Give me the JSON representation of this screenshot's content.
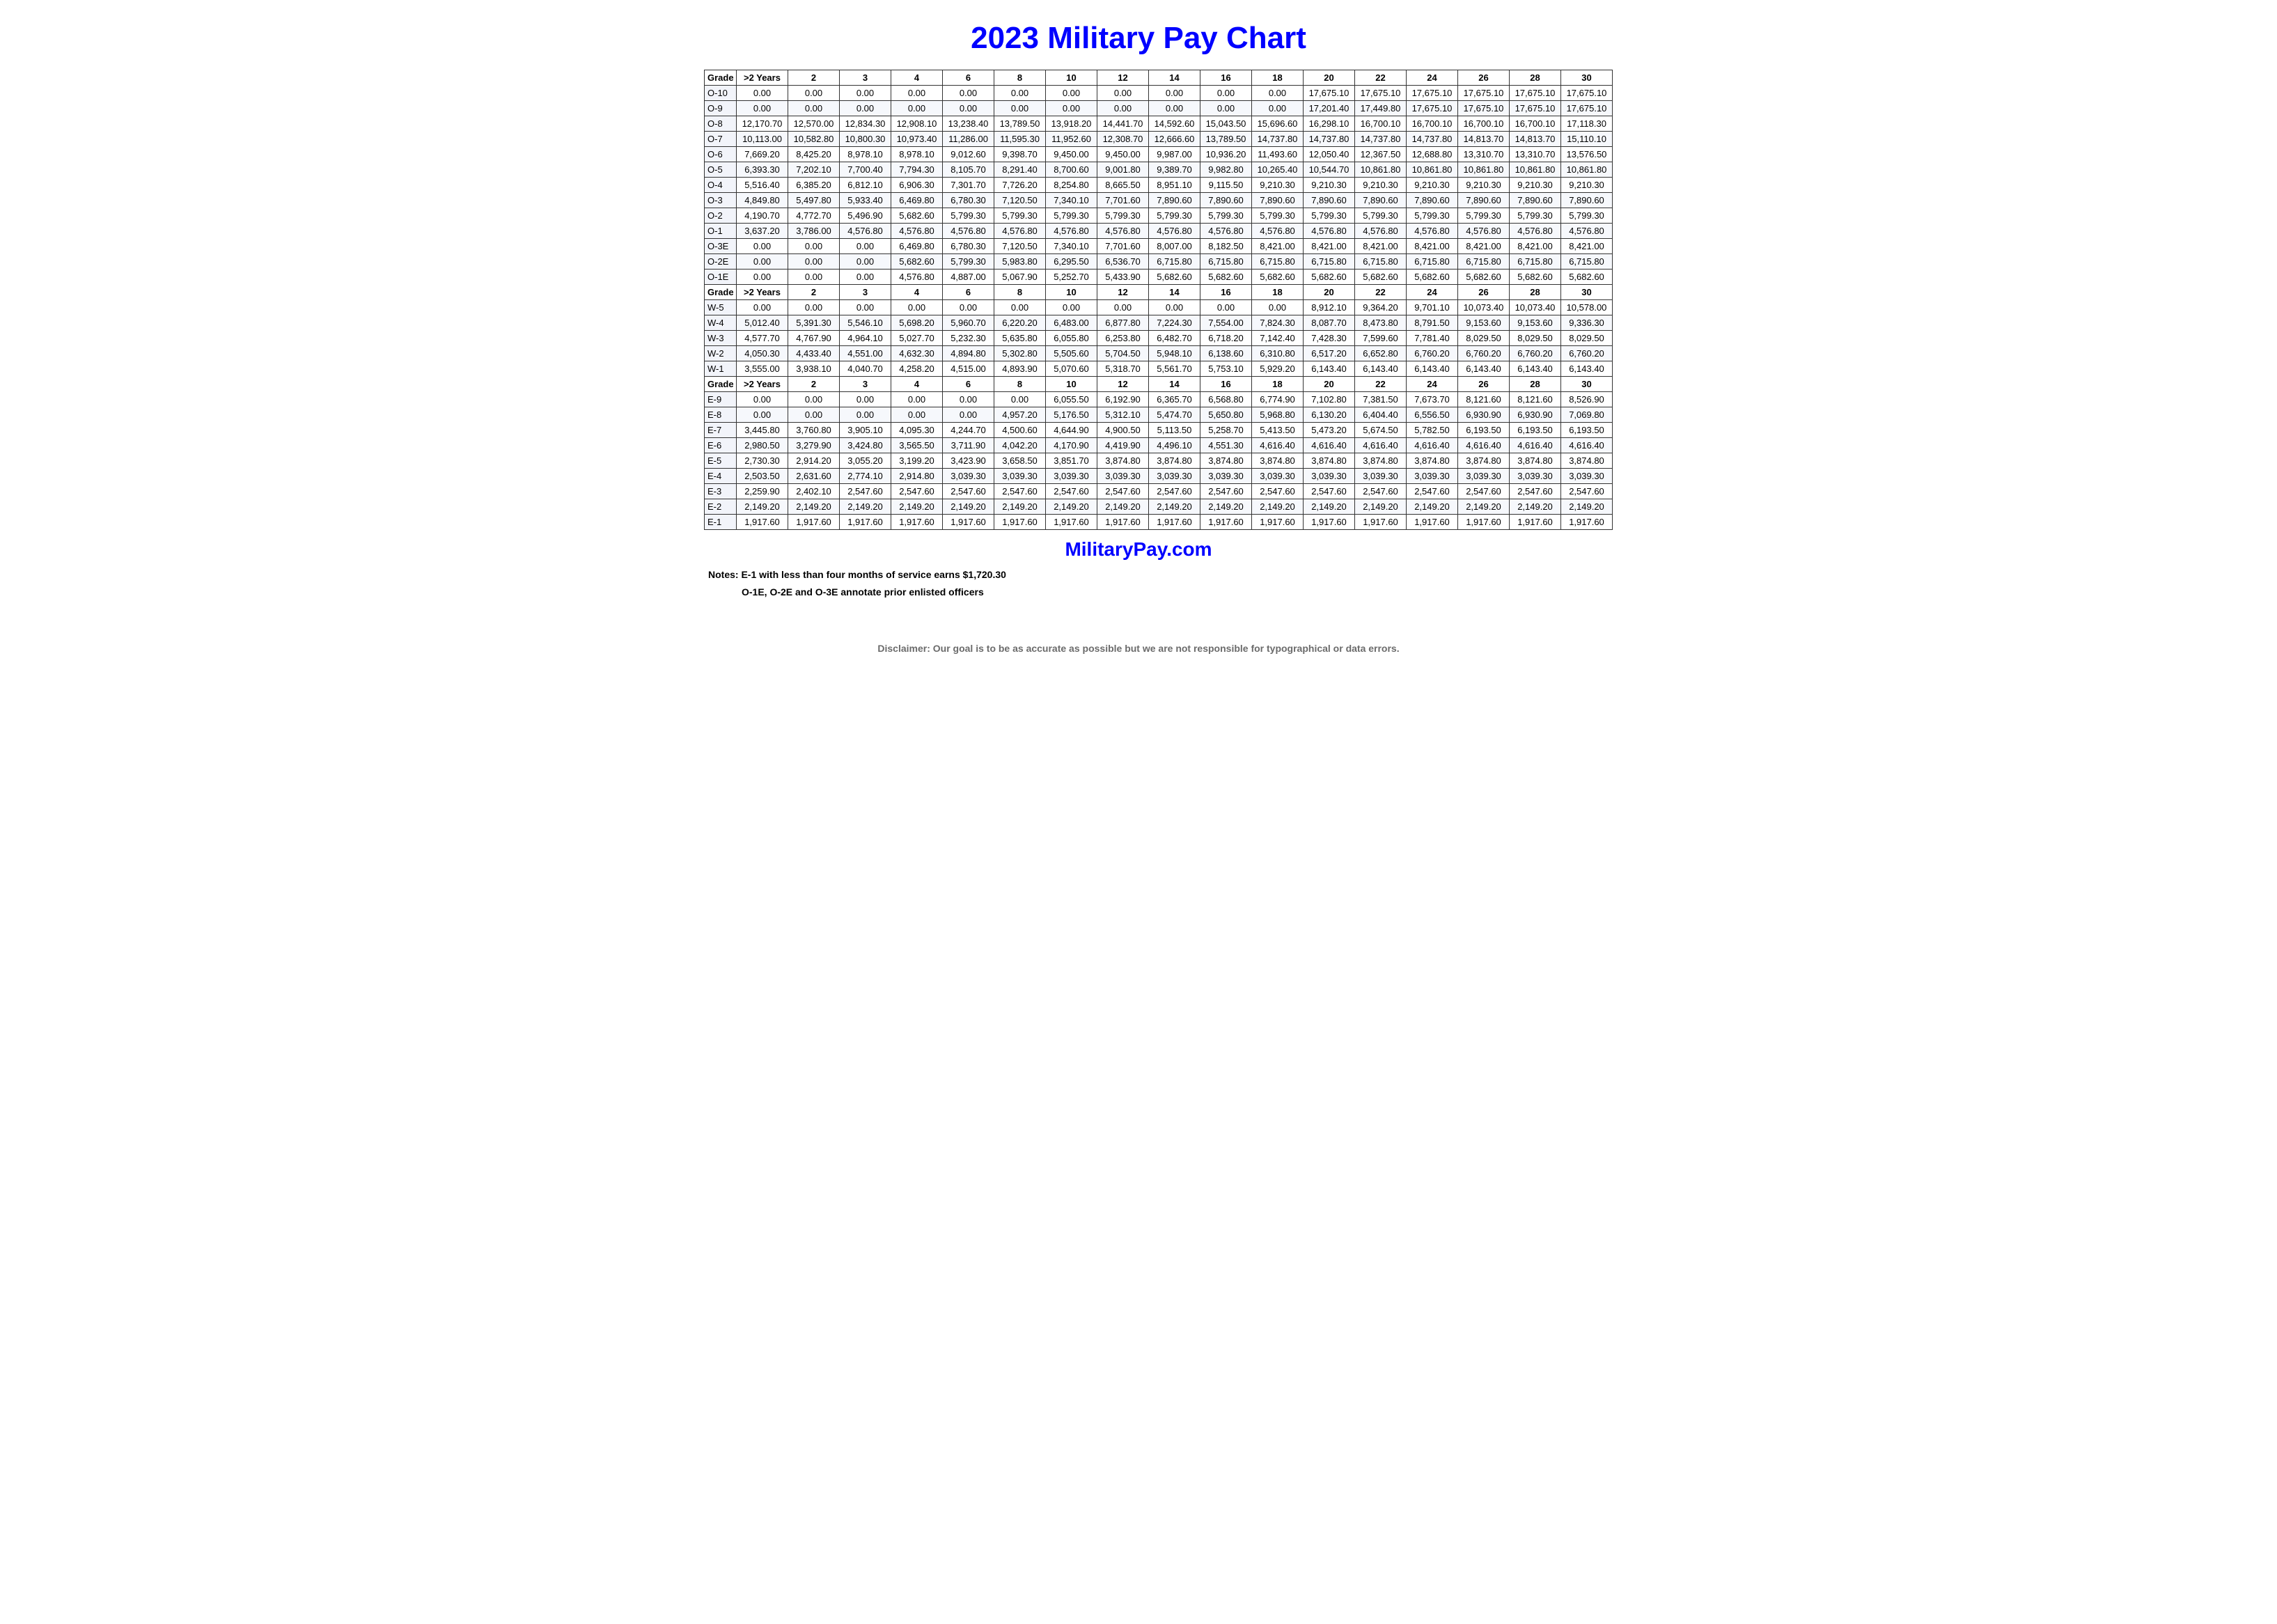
{
  "title": "2023 Military Pay Chart",
  "site": "MilitaryPay.com",
  "notes_label": "Notes:",
  "note1": "E-1 with less than four months of service earns $1,720.30",
  "note2": "O-1E, O-2E and O-3E annotate prior enlisted officers",
  "disclaimer": "Disclaimer: Our goal is to be as accurate as possible but we are not responsible for typographical or data errors.",
  "header_labels": [
    "Grade",
    ">2 Years",
    "2",
    "3",
    "4",
    "6",
    "8",
    "10",
    "12",
    "14",
    "16",
    "18",
    "20",
    "22",
    "24",
    "26",
    "28",
    "30"
  ],
  "sections": [
    {
      "rows": [
        {
          "grade": "O-10",
          "vals": [
            "0.00",
            "0.00",
            "0.00",
            "0.00",
            "0.00",
            "0.00",
            "0.00",
            "0.00",
            "0.00",
            "0.00",
            "0.00",
            "17,675.10",
            "17,675.10",
            "17,675.10",
            "17,675.10",
            "17,675.10",
            "17,675.10"
          ]
        },
        {
          "grade": "O-9",
          "vals": [
            "0.00",
            "0.00",
            "0.00",
            "0.00",
            "0.00",
            "0.00",
            "0.00",
            "0.00",
            "0.00",
            "0.00",
            "0.00",
            "17,201.40",
            "17,449.80",
            "17,675.10",
            "17,675.10",
            "17,675.10",
            "17,675.10"
          ]
        },
        {
          "grade": "O-8",
          "vals": [
            "12,170.70",
            "12,570.00",
            "12,834.30",
            "12,908.10",
            "13,238.40",
            "13,789.50",
            "13,918.20",
            "14,441.70",
            "14,592.60",
            "15,043.50",
            "15,696.60",
            "16,298.10",
            "16,700.10",
            "16,700.10",
            "16,700.10",
            "16,700.10",
            "17,118.30"
          ]
        },
        {
          "grade": "O-7",
          "vals": [
            "10,113.00",
            "10,582.80",
            "10,800.30",
            "10,973.40",
            "11,286.00",
            "11,595.30",
            "11,952.60",
            "12,308.70",
            "12,666.60",
            "13,789.50",
            "14,737.80",
            "14,737.80",
            "14,737.80",
            "14,737.80",
            "14,813.70",
            "14,813.70",
            "15,110.10"
          ]
        },
        {
          "grade": "O-6",
          "vals": [
            "7,669.20",
            "8,425.20",
            "8,978.10",
            "8,978.10",
            "9,012.60",
            "9,398.70",
            "9,450.00",
            "9,450.00",
            "9,987.00",
            "10,936.20",
            "11,493.60",
            "12,050.40",
            "12,367.50",
            "12,688.80",
            "13,310.70",
            "13,310.70",
            "13,576.50"
          ]
        },
        {
          "grade": "O-5",
          "vals": [
            "6,393.30",
            "7,202.10",
            "7,700.40",
            "7,794.30",
            "8,105.70",
            "8,291.40",
            "8,700.60",
            "9,001.80",
            "9,389.70",
            "9,982.80",
            "10,265.40",
            "10,544.70",
            "10,861.80",
            "10,861.80",
            "10,861.80",
            "10,861.80",
            "10,861.80"
          ]
        },
        {
          "grade": "O-4",
          "vals": [
            "5,516.40",
            "6,385.20",
            "6,812.10",
            "6,906.30",
            "7,301.70",
            "7,726.20",
            "8,254.80",
            "8,665.50",
            "8,951.10",
            "9,115.50",
            "9,210.30",
            "9,210.30",
            "9,210.30",
            "9,210.30",
            "9,210.30",
            "9,210.30",
            "9,210.30"
          ]
        },
        {
          "grade": "O-3",
          "vals": [
            "4,849.80",
            "5,497.80",
            "5,933.40",
            "6,469.80",
            "6,780.30",
            "7,120.50",
            "7,340.10",
            "7,701.60",
            "7,890.60",
            "7,890.60",
            "7,890.60",
            "7,890.60",
            "7,890.60",
            "7,890.60",
            "7,890.60",
            "7,890.60",
            "7,890.60"
          ]
        },
        {
          "grade": "O-2",
          "vals": [
            "4,190.70",
            "4,772.70",
            "5,496.90",
            "5,682.60",
            "5,799.30",
            "5,799.30",
            "5,799.30",
            "5,799.30",
            "5,799.30",
            "5,799.30",
            "5,799.30",
            "5,799.30",
            "5,799.30",
            "5,799.30",
            "5,799.30",
            "5,799.30",
            "5,799.30"
          ]
        },
        {
          "grade": "O-1",
          "vals": [
            "3,637.20",
            "3,786.00",
            "4,576.80",
            "4,576.80",
            "4,576.80",
            "4,576.80",
            "4,576.80",
            "4,576.80",
            "4,576.80",
            "4,576.80",
            "4,576.80",
            "4,576.80",
            "4,576.80",
            "4,576.80",
            "4,576.80",
            "4,576.80",
            "4,576.80"
          ]
        },
        {
          "grade": "O-3E",
          "vals": [
            "0.00",
            "0.00",
            "0.00",
            "6,469.80",
            "6,780.30",
            "7,120.50",
            "7,340.10",
            "7,701.60",
            "8,007.00",
            "8,182.50",
            "8,421.00",
            "8,421.00",
            "8,421.00",
            "8,421.00",
            "8,421.00",
            "8,421.00",
            "8,421.00"
          ]
        },
        {
          "grade": "O-2E",
          "vals": [
            "0.00",
            "0.00",
            "0.00",
            "5,682.60",
            "5,799.30",
            "5,983.80",
            "6,295.50",
            "6,536.70",
            "6,715.80",
            "6,715.80",
            "6,715.80",
            "6,715.80",
            "6,715.80",
            "6,715.80",
            "6,715.80",
            "6,715.80",
            "6,715.80"
          ]
        },
        {
          "grade": "O-1E",
          "vals": [
            "0.00",
            "0.00",
            "0.00",
            "4,576.80",
            "4,887.00",
            "5,067.90",
            "5,252.70",
            "5,433.90",
            "5,682.60",
            "5,682.60",
            "5,682.60",
            "5,682.60",
            "5,682.60",
            "5,682.60",
            "5,682.60",
            "5,682.60",
            "5,682.60"
          ]
        }
      ]
    },
    {
      "rows": [
        {
          "grade": "W-5",
          "vals": [
            "0.00",
            "0.00",
            "0.00",
            "0.00",
            "0.00",
            "0.00",
            "0.00",
            "0.00",
            "0.00",
            "0.00",
            "0.00",
            "8,912.10",
            "9,364.20",
            "9,701.10",
            "10,073.40",
            "10,073.40",
            "10,578.00"
          ]
        },
        {
          "grade": "W-4",
          "vals": [
            "5,012.40",
            "5,391.30",
            "5,546.10",
            "5,698.20",
            "5,960.70",
            "6,220.20",
            "6,483.00",
            "6,877.80",
            "7,224.30",
            "7,554.00",
            "7,824.30",
            "8,087.70",
            "8,473.80",
            "8,791.50",
            "9,153.60",
            "9,153.60",
            "9,336.30"
          ]
        },
        {
          "grade": "W-3",
          "vals": [
            "4,577.70",
            "4,767.90",
            "4,964.10",
            "5,027.70",
            "5,232.30",
            "5,635.80",
            "6,055.80",
            "6,253.80",
            "6,482.70",
            "6,718.20",
            "7,142.40",
            "7,428.30",
            "7,599.60",
            "7,781.40",
            "8,029.50",
            "8,029.50",
            "8,029.50"
          ]
        },
        {
          "grade": "W-2",
          "vals": [
            "4,050.30",
            "4,433.40",
            "4,551.00",
            "4,632.30",
            "4,894.80",
            "5,302.80",
            "5,505.60",
            "5,704.50",
            "5,948.10",
            "6,138.60",
            "6,310.80",
            "6,517.20",
            "6,652.80",
            "6,760.20",
            "6,760.20",
            "6,760.20",
            "6,760.20"
          ]
        },
        {
          "grade": "W-1",
          "vals": [
            "3,555.00",
            "3,938.10",
            "4,040.70",
            "4,258.20",
            "4,515.00",
            "4,893.90",
            "5,070.60",
            "5,318.70",
            "5,561.70",
            "5,753.10",
            "5,929.20",
            "6,143.40",
            "6,143.40",
            "6,143.40",
            "6,143.40",
            "6,143.40",
            "6,143.40"
          ]
        }
      ]
    },
    {
      "rows": [
        {
          "grade": "E-9",
          "vals": [
            "0.00",
            "0.00",
            "0.00",
            "0.00",
            "0.00",
            "0.00",
            "6,055.50",
            "6,192.90",
            "6,365.70",
            "6,568.80",
            "6,774.90",
            "7,102.80",
            "7,381.50",
            "7,673.70",
            "8,121.60",
            "8,121.60",
            "8,526.90"
          ]
        },
        {
          "grade": "E-8",
          "vals": [
            "0.00",
            "0.00",
            "0.00",
            "0.00",
            "0.00",
            "4,957.20",
            "5,176.50",
            "5,312.10",
            "5,474.70",
            "5,650.80",
            "5,968.80",
            "6,130.20",
            "6,404.40",
            "6,556.50",
            "6,930.90",
            "6,930.90",
            "7,069.80"
          ]
        },
        {
          "grade": "E-7",
          "vals": [
            "3,445.80",
            "3,760.80",
            "3,905.10",
            "4,095.30",
            "4,244.70",
            "4,500.60",
            "4,644.90",
            "4,900.50",
            "5,113.50",
            "5,258.70",
            "5,413.50",
            "5,473.20",
            "5,674.50",
            "5,782.50",
            "6,193.50",
            "6,193.50",
            "6,193.50"
          ]
        },
        {
          "grade": "E-6",
          "vals": [
            "2,980.50",
            "3,279.90",
            "3,424.80",
            "3,565.50",
            "3,711.90",
            "4,042.20",
            "4,170.90",
            "4,419.90",
            "4,496.10",
            "4,551.30",
            "4,616.40",
            "4,616.40",
            "4,616.40",
            "4,616.40",
            "4,616.40",
            "4,616.40",
            "4,616.40"
          ]
        },
        {
          "grade": "E-5",
          "vals": [
            "2,730.30",
            "2,914.20",
            "3,055.20",
            "3,199.20",
            "3,423.90",
            "3,658.50",
            "3,851.70",
            "3,874.80",
            "3,874.80",
            "3,874.80",
            "3,874.80",
            "3,874.80",
            "3,874.80",
            "3,874.80",
            "3,874.80",
            "3,874.80",
            "3,874.80"
          ]
        },
        {
          "grade": "E-4",
          "vals": [
            "2,503.50",
            "2,631.60",
            "2,774.10",
            "2,914.80",
            "3,039.30",
            "3,039.30",
            "3,039.30",
            "3,039.30",
            "3,039.30",
            "3,039.30",
            "3,039.30",
            "3,039.30",
            "3,039.30",
            "3,039.30",
            "3,039.30",
            "3,039.30",
            "3,039.30"
          ]
        },
        {
          "grade": "E-3",
          "vals": [
            "2,259.90",
            "2,402.10",
            "2,547.60",
            "2,547.60",
            "2,547.60",
            "2,547.60",
            "2,547.60",
            "2,547.60",
            "2,547.60",
            "2,547.60",
            "2,547.60",
            "2,547.60",
            "2,547.60",
            "2,547.60",
            "2,547.60",
            "2,547.60",
            "2,547.60"
          ]
        },
        {
          "grade": "E-2",
          "vals": [
            "2,149.20",
            "2,149.20",
            "2,149.20",
            "2,149.20",
            "2,149.20",
            "2,149.20",
            "2,149.20",
            "2,149.20",
            "2,149.20",
            "2,149.20",
            "2,149.20",
            "2,149.20",
            "2,149.20",
            "2,149.20",
            "2,149.20",
            "2,149.20",
            "2,149.20"
          ]
        },
        {
          "grade": "E-1",
          "vals": [
            "1,917.60",
            "1,917.60",
            "1,917.60",
            "1,917.60",
            "1,917.60",
            "1,917.60",
            "1,917.60",
            "1,917.60",
            "1,917.60",
            "1,917.60",
            "1,917.60",
            "1,917.60",
            "1,917.60",
            "1,917.60",
            "1,917.60",
            "1,917.60",
            "1,917.60"
          ]
        }
      ]
    }
  ],
  "style": {
    "title_color": "#0000ff",
    "title_fontsize": 44,
    "site_color": "#0000ff",
    "border_color": "#333333",
    "row_alt_bg": "#f6f8fc",
    "grade_col_bg": "#f2f4fa",
    "disclaimer_color": "#6b6b6b",
    "cell_fontsize": 13,
    "font_family": "Arial"
  }
}
